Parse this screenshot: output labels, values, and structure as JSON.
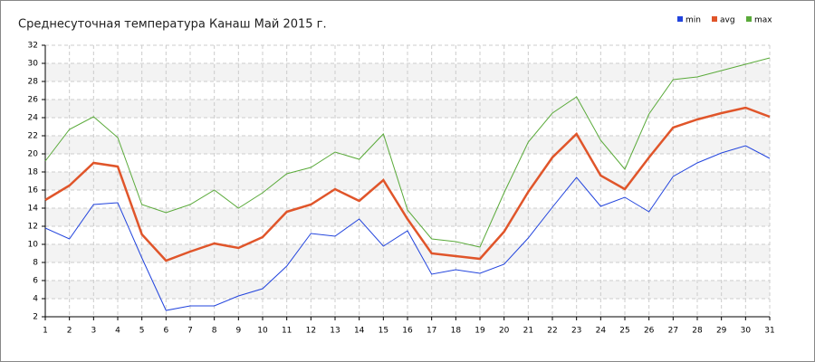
{
  "chart_data": {
    "type": "line",
    "title": "Среднесуточная температура Канаш  Май 2015 г.",
    "x": [
      1,
      2,
      3,
      4,
      5,
      6,
      7,
      8,
      9,
      10,
      11,
      12,
      13,
      14,
      15,
      16,
      17,
      18,
      19,
      20,
      21,
      22,
      23,
      24,
      25,
      26,
      27,
      28,
      29,
      30,
      31
    ],
    "series": [
      {
        "name": "min",
        "color": "#2244dd",
        "values": [
          11.8,
          10.6,
          14.4,
          14.6,
          8.5,
          2.7,
          3.2,
          3.2,
          4.3,
          5.1,
          7.6,
          11.2,
          10.9,
          12.8,
          9.8,
          11.5,
          6.7,
          7.2,
          6.8,
          7.8,
          10.7,
          14.1,
          17.4,
          14.2,
          15.2,
          13.6,
          17.5,
          19.0,
          20.1,
          20.9,
          19.5
        ]
      },
      {
        "name": "avg",
        "color": "#e0552a",
        "values": [
          14.9,
          16.5,
          19.0,
          18.6,
          11.1,
          8.2,
          9.2,
          10.1,
          9.6,
          10.8,
          13.6,
          14.4,
          16.1,
          14.8,
          17.1,
          12.8,
          9.0,
          8.7,
          8.4,
          11.4,
          15.8,
          19.6,
          22.2,
          17.6,
          16.1,
          19.6,
          22.9,
          23.8,
          24.5,
          25.1,
          24.1
        ]
      },
      {
        "name": "max",
        "color": "#5aaa3a",
        "values": [
          19.2,
          22.7,
          24.1,
          21.8,
          14.4,
          13.5,
          14.4,
          16.0,
          14.0,
          15.7,
          17.8,
          18.5,
          20.2,
          19.4,
          22.2,
          13.8,
          10.6,
          10.3,
          9.7,
          15.7,
          21.3,
          24.5,
          26.3,
          21.5,
          18.3,
          24.4,
          28.2,
          28.5,
          29.2,
          29.9,
          30.6
        ]
      }
    ],
    "xlim": [
      1,
      31
    ],
    "xticks": [
      1,
      2,
      3,
      4,
      5,
      6,
      7,
      8,
      9,
      10,
      11,
      12,
      13,
      14,
      15,
      16,
      17,
      18,
      19,
      20,
      21,
      22,
      23,
      24,
      25,
      26,
      27,
      28,
      29,
      30,
      31
    ],
    "ylim": [
      2,
      32
    ],
    "yticks": [
      2,
      4,
      6,
      8,
      10,
      12,
      14,
      16,
      18,
      20,
      22,
      24,
      26,
      28,
      30,
      32
    ],
    "grid": true,
    "legend": "top-right"
  }
}
